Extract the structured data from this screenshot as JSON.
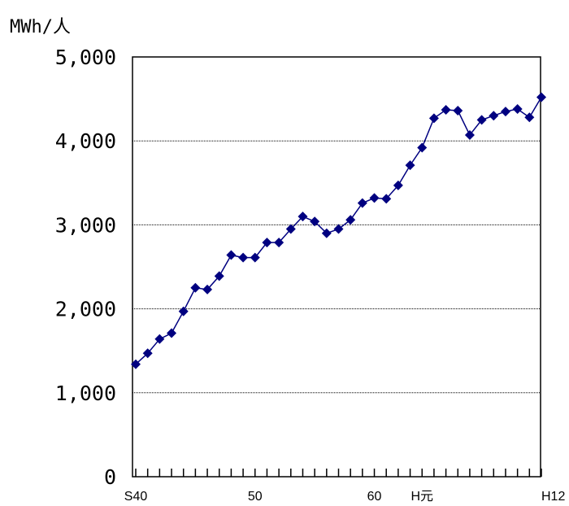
{
  "chart_data": {
    "type": "line",
    "ylabel": "MWh/人",
    "ylim": [
      0,
      5000
    ],
    "yticks": [
      0,
      1000,
      2000,
      3000,
      4000,
      5000
    ],
    "ytick_labels": [
      "0",
      "1,000",
      "2,000",
      "3,000",
      "4,000",
      "5,000"
    ],
    "gridlines": [
      1000,
      2000,
      3000,
      4000
    ],
    "xtick_labels": [
      {
        "label": "S40",
        "index": 0
      },
      {
        "label": "50",
        "index": 10
      },
      {
        "label": "60",
        "index": 20
      },
      {
        "label": "H元",
        "index": 24
      },
      {
        "label": "H12",
        "index": 35
      }
    ],
    "series": [
      {
        "color": "#000080",
        "marker": "diamond",
        "values": [
          1340,
          1470,
          1640,
          1710,
          1970,
          2250,
          2230,
          2390,
          2640,
          2610,
          2610,
          2790,
          2790,
          2950,
          3100,
          3040,
          2900,
          2950,
          3060,
          3260,
          3320,
          3310,
          3470,
          3710,
          3920,
          4270,
          4370,
          4360,
          4070,
          4250,
          4300,
          4350,
          4380,
          4280,
          4520
        ]
      }
    ]
  }
}
